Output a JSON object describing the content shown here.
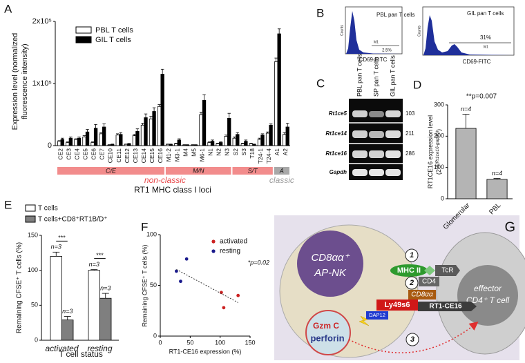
{
  "panel_labels": [
    "A",
    "B",
    "C",
    "D",
    "E",
    "F",
    "G"
  ],
  "chart_data": [
    {
      "type": "bar",
      "ylabel": [
        "Expression level (normalized",
        "fluorescence intensity)"
      ],
      "xlabel": "RT1 MHC class I loci",
      "classes": [
        {
          "label": "non-classic",
          "color": "#e8484a",
          "groups": [
            {
              "label": "C/E",
              "color": "#f28c8c",
              "categories": [
                "CE2",
                "CE3",
                "CE4",
                "CE5",
                "CE6",
                "CE7",
                "CE10",
                "CE11",
                "CE12",
                "CE13",
                "CE14",
                "CE15",
                "CE16"
              ]
            },
            {
              "label": "M/N",
              "color": "#f28c8c",
              "categories": [
                "M1-2",
                "M3-1",
                "M4",
                "M5",
                "M6-1",
                "N1",
                "N2",
                "N3"
              ]
            },
            {
              "label": "S/T",
              "color": "#f28c8c",
              "categories": [
                "S2",
                "S3",
                "T18",
                "T24-1",
                "T24-4"
              ]
            }
          ]
        },
        {
          "label": "classic",
          "color": "#9a9a9a",
          "groups": [
            {
              "label": "A",
              "color": "#a8a8a8",
              "categories": [
                "A1",
                "A2"
              ]
            }
          ]
        }
      ],
      "series": [
        {
          "name": "PBL T cells",
          "color": "#ffffff",
          "values": [
            7000,
            5000,
            10000,
            14000,
            5000,
            19000,
            1000,
            17000,
            2000,
            16000,
            33000,
            43000,
            63000,
            2000,
            3000,
            1000,
            1000,
            50000,
            5000,
            3000,
            15000,
            12000,
            3000,
            3000,
            10000,
            20000,
            135000,
            18000
          ],
          "errors": [
            1000,
            1000,
            1000,
            2000,
            1000,
            2000,
            500,
            2000,
            500,
            2000,
            3000,
            4000,
            3000,
            500,
            1000,
            500,
            500,
            4000,
            1000,
            1000,
            2000,
            2000,
            1000,
            1000,
            2000,
            2000,
            6000,
            3000
          ]
        },
        {
          "name": "GIL T cells",
          "color": "#000000",
          "values": [
            10000,
            12000,
            12000,
            22000,
            28000,
            30000,
            2000,
            18000,
            3000,
            23000,
            45000,
            55000,
            115000,
            2000,
            9000,
            1000,
            1000,
            73000,
            7000,
            5000,
            44000,
            18000,
            7000,
            2000,
            17000,
            33000,
            180000,
            30000
          ],
          "errors": [
            2000,
            2000,
            2000,
            4000,
            6000,
            5000,
            500,
            3000,
            500,
            4000,
            6000,
            6000,
            8000,
            500,
            2000,
            500,
            500,
            9000,
            2000,
            1000,
            8000,
            3000,
            2000,
            500,
            2000,
            2000,
            8000,
            6000
          ]
        }
      ],
      "ylim": [
        0,
        200000
      ],
      "yticks": [
        0,
        {
          "value": 100000,
          "label": "1x10⁵"
        },
        {
          "value": 200000,
          "label": "2x10⁵"
        }
      ]
    },
    {
      "type": "bar",
      "ylabel_parts": [
        "RT1CE16 expression level",
        "(2",
        "-Δ(Rt1ce16-gapdh)",
        ")"
      ],
      "annotation": "**p=0.007",
      "categories": [
        "Glomerular",
        "PBL"
      ],
      "values": [
        225,
        62
      ],
      "errors": [
        45,
        3
      ],
      "notes": [
        "n=4",
        "n=4"
      ],
      "color": "#b4b4b4",
      "ylim": [
        0,
        300
      ],
      "yticks": [
        0,
        100,
        200,
        300
      ]
    },
    {
      "type": "bar",
      "ylabel": "Remaining CFSE⁺ T cells (%)",
      "xlabel": "T cell status",
      "categories": [
        "activated",
        "resting"
      ],
      "series": [
        {
          "name": "T cells",
          "color": "#ffffff",
          "values": [
            120,
            100
          ],
          "errors": [
            6,
            1
          ],
          "notes": [
            "n=3",
            "n=3"
          ]
        },
        {
          "name": "T cells+CD8⁺RT1B/D⁺",
          "color": "#7f7f7f",
          "values": [
            29,
            60
          ],
          "errors": [
            5,
            7
          ],
          "notes": [
            "n=3",
            "n=3"
          ]
        }
      ],
      "significance": [
        "***",
        "***"
      ],
      "ylim": [
        0,
        150
      ],
      "yticks": [
        0,
        50,
        100,
        150
      ]
    },
    {
      "type": "scatter",
      "ylabel": "Remaining CFSE⁺ T cells (%)",
      "xlabel": "RT1-CE16 expression (%)",
      "annotation": "*p=0.02",
      "series": [
        {
          "name": "activated",
          "color": "#cc2222",
          "x": [
            102,
            130,
            106
          ],
          "values": [
            43,
            40,
            28
          ]
        },
        {
          "name": "resting",
          "color": "#1a1a8c",
          "x": [
            27,
            44,
            34
          ],
          "values": [
            64,
            76,
            54
          ]
        }
      ],
      "xlim": [
        0,
        150
      ],
      "ylim": [
        0,
        100
      ],
      "xticks": [
        0,
        50,
        100,
        150
      ],
      "yticks": [
        0,
        50,
        100
      ]
    }
  ],
  "flow": {
    "ylabel": "Counts",
    "marker": "M1",
    "panels": [
      {
        "title": "PBL pan T cells",
        "xlabel": "CD69-FITC",
        "percent": "2.5%"
      },
      {
        "title": "GIL pan T cells",
        "xlabel": "CD69-FITC",
        "percent": "31%"
      }
    ]
  },
  "gel": {
    "lanes": [
      "PBL pan T cells",
      "SP pan T cells",
      "GIL pan T cells"
    ],
    "rows": [
      {
        "gene": "Rt1ce5",
        "size": 103
      },
      {
        "gene": "Rt1ce14",
        "size": 211
      },
      {
        "gene": "Rt1ce16",
        "size": 286
      },
      {
        "gene": "Gapdh"
      }
    ]
  },
  "diagram": {
    "apnk": [
      "CD8αα⁺",
      "AP-NK"
    ],
    "effector": [
      "effector",
      "CD4⁺ T cell"
    ],
    "granule": [
      "Gzm C",
      "perforin"
    ],
    "molecules": {
      "mhc": "MHC II",
      "tcr": "TcR",
      "cd4": "CD4",
      "cd8": "CD8αα",
      "ly49": "Ly49s6",
      "rt1": "RT1-CE16",
      "dap12": "DAP12"
    },
    "steps": [
      "1",
      "2",
      "3"
    ]
  }
}
